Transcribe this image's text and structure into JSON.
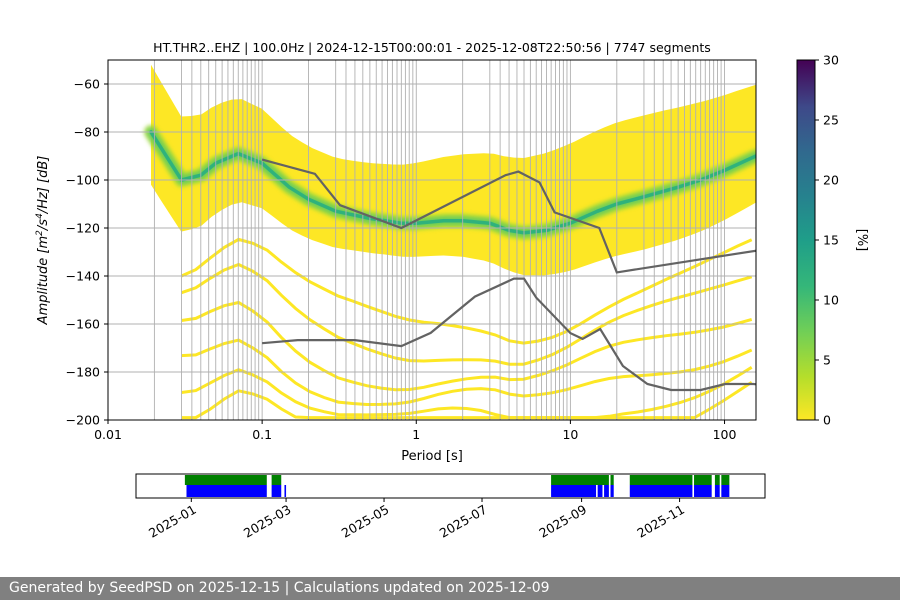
{
  "chart_data": {
    "type": "heatmap",
    "title": "HT.THR2..EHZ | 100.0Hz | 2024-12-15T00:00:01 - 2025-12-08T22:50:56 | 7747 segments",
    "xlabel": "Period [s]",
    "ylabel_parts": [
      "Amplitude [m",
      "2",
      "/s",
      "4",
      "/Hz] [dB]"
    ],
    "x_scale": "log",
    "xlim": [
      0.01,
      160
    ],
    "ylim": [
      -200,
      -50
    ],
    "x_ticks": [
      {
        "value": 0.01,
        "label": "0.01"
      },
      {
        "value": 0.1,
        "label": "0.1"
      },
      {
        "value": 1,
        "label": "1"
      },
      {
        "value": 10,
        "label": "10"
      },
      {
        "value": 100,
        "label": "100"
      }
    ],
    "y_ticks": [
      {
        "value": -60,
        "label": "−60"
      },
      {
        "value": -80,
        "label": "−80"
      },
      {
        "value": -100,
        "label": "−100"
      },
      {
        "value": -120,
        "label": "−120"
      },
      {
        "value": -140,
        "label": "−140"
      },
      {
        "value": -160,
        "label": "−160"
      },
      {
        "value": -180,
        "label": "−180"
      },
      {
        "value": -200,
        "label": "−200"
      }
    ],
    "grid": true,
    "colormap": "viridis_r",
    "colorbar": {
      "label": "[%]",
      "range": [
        0,
        30
      ],
      "ticks": [
        {
          "value": 0,
          "label": "0"
        },
        {
          "value": 5,
          "label": "5"
        },
        {
          "value": 10,
          "label": "10"
        },
        {
          "value": 15,
          "label": "15"
        },
        {
          "value": 20,
          "label": "20"
        },
        {
          "value": 25,
          "label": "25"
        },
        {
          "value": 30,
          "label": "30"
        }
      ]
    },
    "density_ridge": {
      "x": [
        0.019,
        0.025,
        0.03,
        0.04,
        0.05,
        0.07,
        0.1,
        0.15,
        0.2,
        0.3,
        0.5,
        0.8,
        1,
        1.5,
        2,
        3,
        4,
        5,
        7,
        10,
        15,
        20,
        30,
        50,
        70,
        100,
        160
      ],
      "y": [
        -80,
        -92,
        -100,
        -98,
        -93,
        -89,
        -93,
        -103,
        -108,
        -113,
        -116,
        -118,
        -118,
        -117,
        -117,
        -118,
        -121,
        -122,
        -121,
        -118,
        -113,
        -110,
        -107,
        -103,
        -100,
        -96,
        -90
      ]
    },
    "noise_model_high": {
      "x": [
        0.1,
        0.22,
        0.32,
        0.8,
        3.8,
        4.6,
        6.3,
        7.9,
        15.4,
        20,
        354.8
      ],
      "y": [
        -91.5,
        -97.4,
        -110.5,
        -120,
        -98,
        -96.5,
        -101,
        -113.5,
        -120,
        -138.5,
        -126
      ]
    },
    "noise_model_low": {
      "x": [
        0.1,
        0.17,
        0.4,
        0.8,
        1.24,
        2.4,
        4.3,
        5,
        6,
        10,
        12,
        15.6,
        21.9,
        31.6,
        45,
        70,
        101,
        154,
        328
      ],
      "y": [
        -168,
        -166.7,
        -166.7,
        -169.2,
        -163.7,
        -148.6,
        -141.1,
        -141.1,
        -149,
        -163.8,
        -166.2,
        -162.1,
        -177.5,
        -185,
        -187.5,
        -187.5,
        -185,
        -185,
        -187.5
      ]
    },
    "gridline_periods": [
      0.02,
      0.03,
      0.035,
      0.04,
      0.045,
      0.05,
      0.055,
      0.06,
      0.065,
      0.07,
      0.075,
      0.08,
      0.085,
      0.09,
      0.095,
      0.2,
      0.3,
      0.35,
      0.4,
      0.45,
      0.5,
      0.55,
      0.6,
      0.65,
      0.7,
      0.75,
      0.8,
      0.85,
      0.9,
      0.95,
      2,
      3,
      3.5,
      4,
      4.5,
      5,
      5.5,
      6,
      6.5,
      7,
      7.5,
      8,
      8.5,
      9,
      9.5,
      20,
      30,
      35,
      40,
      45,
      50,
      55,
      60,
      65,
      70,
      75,
      80,
      85,
      90,
      95
    ],
    "timeline": {
      "date_range": [
        "2024-12-15",
        "2025-12-08"
      ],
      "date_ticks": [
        {
          "date": "2025-01-01",
          "label": "2025-01"
        },
        {
          "date": "2025-03-01",
          "label": "2025-03"
        },
        {
          "date": "2025-05-01",
          "label": "2025-05"
        },
        {
          "date": "2025-07-01",
          "label": "2025-07"
        },
        {
          "date": "2025-09-01",
          "label": "2025-09"
        },
        {
          "date": "2025-11-01",
          "label": "2025-11"
        }
      ],
      "green_spans": [
        [
          "2024-12-28",
          "2025-02-17"
        ],
        [
          "2025-02-20",
          "2025-02-26"
        ],
        [
          "2025-08-13",
          "2025-09-18"
        ],
        [
          "2025-09-19",
          "2025-09-21"
        ],
        [
          "2025-10-01",
          "2025-11-09"
        ],
        [
          "2025-11-10",
          "2025-11-21"
        ],
        [
          "2025-11-23",
          "2025-11-26"
        ],
        [
          "2025-11-27",
          "2025-12-02"
        ]
      ],
      "blue_spans": [
        [
          "2024-12-29",
          "2025-02-17"
        ],
        [
          "2025-02-20",
          "2025-02-26"
        ],
        [
          "2025-02-28",
          "2025-03-01"
        ],
        [
          "2025-08-13",
          "2025-09-10"
        ],
        [
          "2025-09-11",
          "2025-09-14"
        ],
        [
          "2025-09-15",
          "2025-09-18"
        ],
        [
          "2025-09-19",
          "2025-09-21"
        ],
        [
          "2025-10-01",
          "2025-11-09"
        ],
        [
          "2025-11-10",
          "2025-11-21"
        ],
        [
          "2025-11-23",
          "2025-11-26"
        ],
        [
          "2025-11-27",
          "2025-12-02"
        ]
      ]
    }
  },
  "footer": {
    "text": "Generated by SeedPSD on 2025-12-15 | Calculations updated on 2025-12-09"
  },
  "colors": {
    "noise_model": "#636363",
    "grid": "#b0b0b0",
    "timeline_green": "#008000",
    "timeline_blue": "#0000ff",
    "footer_bg": "#808080"
  }
}
